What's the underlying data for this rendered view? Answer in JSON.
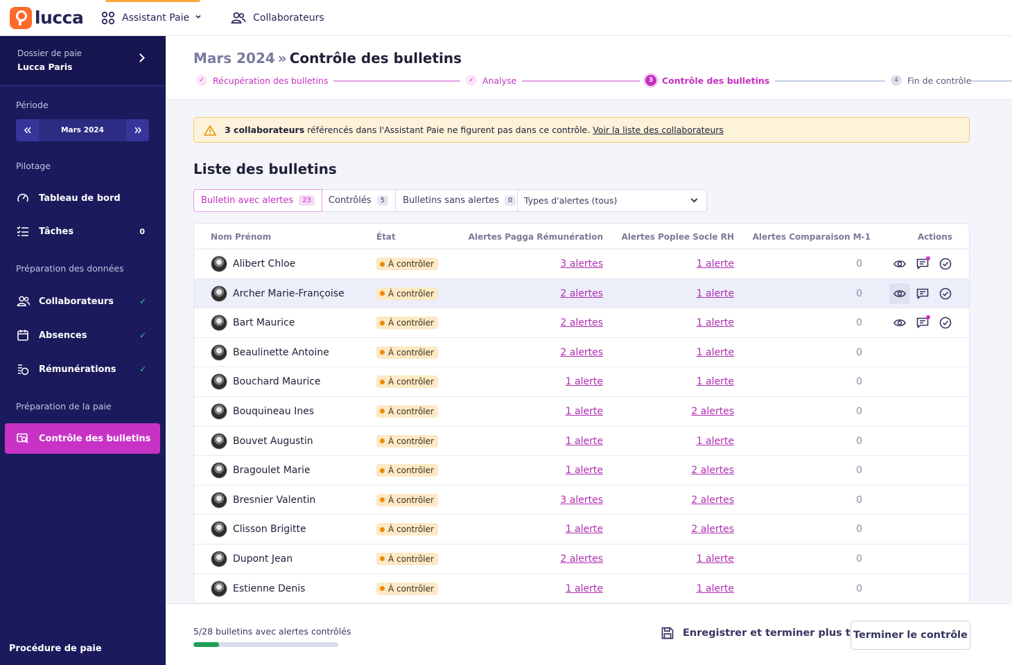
{
  "app": {
    "logo_text": "lucca",
    "nav": [
      {
        "label": "Assistant Paie",
        "icon": "apps-grid-icon",
        "active": true
      },
      {
        "label": "Collaborateurs",
        "icon": "users-icon",
        "active": false
      }
    ]
  },
  "sidebar": {
    "folder_label": "Dossier de paie",
    "folder_name": "Lucca Paris",
    "period_section": "Période",
    "period_value": "Mars 2024",
    "sections": {
      "pilotage": "Pilotage",
      "preparation_donnees": "Préparation des données",
      "preparation_paie": "Préparation de la paie"
    },
    "items": {
      "tableau": {
        "label": "Tableau de bord",
        "icon": "speedometer-icon"
      },
      "taches": {
        "label": "Tâches",
        "icon": "task-list-icon",
        "count": "0"
      },
      "collaborateurs": {
        "label": "Collaborateurs",
        "icon": "users-icon",
        "done": "✓"
      },
      "absences": {
        "label": "Absences",
        "icon": "calendar-icon",
        "done": "✓"
      },
      "remunerations": {
        "label": "Rémunérations",
        "icon": "coins-icon",
        "done": "✓"
      },
      "controle": {
        "label": "Contrôle des bulletins",
        "icon": "payslip-check-icon",
        "active": true
      }
    },
    "footer": "Procédure de paie"
  },
  "header": {
    "period": "Mars 2024",
    "separator": "»",
    "title": "Contrôle des bulletins",
    "steps": [
      {
        "label": "Récupération des bulletins",
        "marker": "✓",
        "state": "done"
      },
      {
        "label": "Analyse",
        "marker": "✓",
        "state": "done"
      },
      {
        "label": "Contrôle des bulletins",
        "marker": "3",
        "state": "current"
      },
      {
        "label": "Fin de contrôle",
        "marker": "4",
        "state": "todo"
      }
    ]
  },
  "alert": {
    "bold": "3 collaborateurs",
    "text": "référencés dans l'Assistant Paie ne figurent pas dans ce contrôle.",
    "link": "Voir la liste des collaborateurs",
    "icon": "warning-triangle-icon"
  },
  "list": {
    "title": "Liste des bulletins",
    "filters": [
      {
        "label": "Bulletin avec alertes",
        "count": "23",
        "active": true
      },
      {
        "label": "Contrôlés",
        "count": "5",
        "active": false
      },
      {
        "label": "Bulletins sans alertes",
        "count": "0",
        "active": false
      }
    ],
    "alert_type_select": "Types d'alertes (tous)",
    "columns": {
      "name": "Nom Prénom",
      "state": "État",
      "pagga": "Alertes Pagga Rémunération",
      "poplee": "Alertes Poplee Socle RH",
      "comparison": "Alertes Comparaison M-1",
      "actions": "Actions"
    },
    "rows": [
      {
        "name": "Alibert Chloe",
        "state": "À contrôler",
        "pagga": "3 alertes",
        "poplee": "1 alerte",
        "comparison": "0",
        "actions": true,
        "comment_dot": true
      },
      {
        "name": "Archer Marie-Françoise",
        "state": "À contrôler",
        "pagga": "2 alertes",
        "poplee": "1 alerte",
        "comparison": "0",
        "actions": true,
        "highlight": true
      },
      {
        "name": "Bart Maurice",
        "state": "À contrôler",
        "pagga": "2 alertes",
        "poplee": "1 alerte",
        "comparison": "0",
        "actions": true,
        "comment_dot": true
      },
      {
        "name": "Beaulinette Antoine",
        "state": "À contrôler",
        "pagga": "2 alertes",
        "poplee": "1 alerte",
        "comparison": "0"
      },
      {
        "name": "Bouchard Maurice",
        "state": "À contrôler",
        "pagga": "1 alerte",
        "poplee": "1 alerte",
        "comparison": "0"
      },
      {
        "name": "Bouquineau Ines",
        "state": "À contrôler",
        "pagga": "1 alerte",
        "poplee": "2 alertes",
        "comparison": "0"
      },
      {
        "name": "Bouvet Augustin",
        "state": "À contrôler",
        "pagga": "1 alerte",
        "poplee": "1 alerte",
        "comparison": "0"
      },
      {
        "name": "Bragoulet Marie",
        "state": "À contrôler",
        "pagga": "1 alerte",
        "poplee": "2 alertes",
        "comparison": "0"
      },
      {
        "name": "Bresnier Valentin",
        "state": "À contrôler",
        "pagga": "3 alertes",
        "poplee": "2 alertes",
        "comparison": "0"
      },
      {
        "name": "Clisson Brigitte",
        "state": "À contrôler",
        "pagga": "1 alerte",
        "poplee": "2 alertes",
        "comparison": "0"
      },
      {
        "name": "Dupont Jean",
        "state": "À contrôler",
        "pagga": "2 alertes",
        "poplee": "1 alerte",
        "comparison": "0"
      },
      {
        "name": "Estienne Denis",
        "state": "À contrôler",
        "pagga": "1 alerte",
        "poplee": "1 alerte",
        "comparison": "0"
      }
    ]
  },
  "footer": {
    "progress_label": "5/28 bulletins avec alertes contrôlés",
    "progress_fraction": 0.1786,
    "save_label": "Enregistrer et terminer plus tard",
    "end_label": "Terminer le contrôle"
  },
  "colors": {
    "primary": "#c52fc2",
    "sidebar": "#1b1a5c",
    "warning": "#f08a00",
    "success": "#1fa055"
  }
}
